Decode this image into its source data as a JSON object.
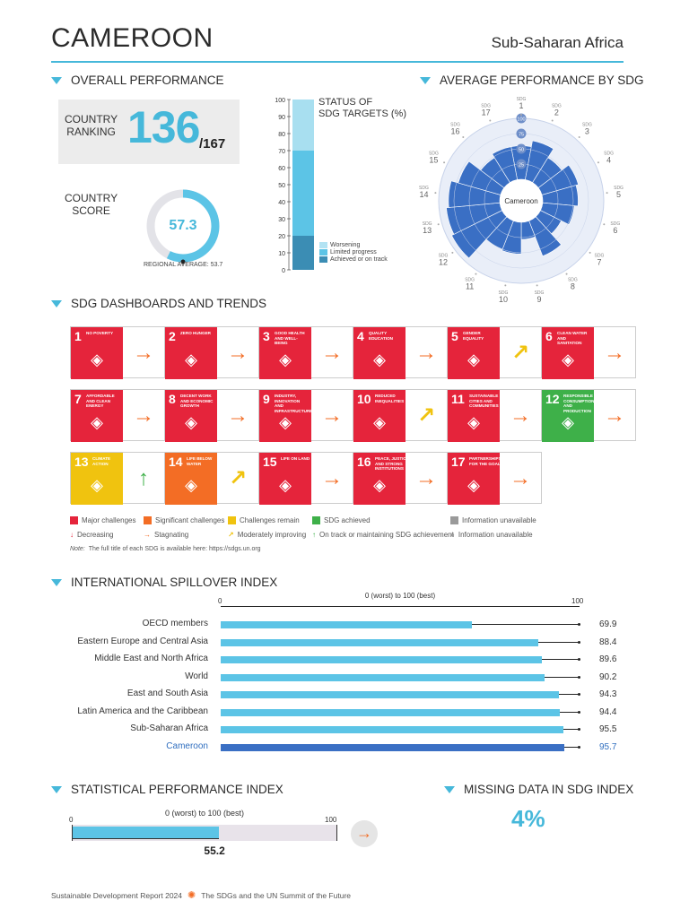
{
  "header": {
    "country": "CAMEROON",
    "region": "Sub-Saharan Africa"
  },
  "sections": {
    "overall": "OVERALL PERFORMANCE",
    "avg_sdg": "AVERAGE PERFORMANCE BY SDG",
    "dashboards": "SDG DASHBOARDS AND TRENDS",
    "spillover": "INTERNATIONAL SPILLOVER INDEX",
    "stat_perf": "STATISTICAL PERFORMANCE INDEX",
    "missing": "MISSING DATA IN SDG INDEX"
  },
  "ranking": {
    "label_line1": "COUNTRY",
    "label_line2": "RANKING",
    "value": "136",
    "of": "/167"
  },
  "score": {
    "label_line1": "COUNTRY",
    "label_line2": "SCORE",
    "value": "57.3",
    "fraction": 0.573,
    "regional_average": "REGIONAL AVERAGE: 53.7"
  },
  "status_chart": {
    "title_line1": "STATUS OF",
    "title_line2": "SDG TARGETS (%)",
    "ticks": [
      "100",
      "90",
      "80",
      "70",
      "60",
      "50",
      "40",
      "30",
      "20",
      "10",
      "0"
    ],
    "segments": [
      {
        "name": "Worsening",
        "value": 0,
        "color": "#b3e3f3"
      },
      {
        "name": "Limited progress",
        "value": 30,
        "color": "#a8dff0"
      },
      {
        "name": "Limited progress",
        "value": 50,
        "color": "#5cc4e6"
      },
      {
        "name": "Achieved or on track",
        "value": 20,
        "color": "#3b8db4"
      }
    ],
    "legend": [
      "Worsening",
      "Limited progress",
      "Achieved or on track"
    ]
  },
  "radial": {
    "center_label": "Cameroon",
    "ring_labels": [
      "100",
      "75",
      "50",
      "25"
    ],
    "sdg_label": "SDG",
    "sdgs": [
      "1",
      "2",
      "3",
      "4",
      "5",
      "6",
      "7",
      "8",
      "9",
      "10",
      "11",
      "12",
      "13",
      "14",
      "15",
      "16",
      "17"
    ],
    "values": [
      55,
      65,
      48,
      62,
      58,
      52,
      38,
      62,
      28,
      52,
      50,
      92,
      88,
      84,
      72,
      48,
      55
    ]
  },
  "sdg_tiles": [
    {
      "num": "1",
      "name": "No poverty",
      "color": "#e5243b",
      "trend": "→",
      "trend_color": "#f36d25"
    },
    {
      "num": "2",
      "name": "Zero hunger",
      "color": "#e5243b",
      "trend": "→",
      "trend_color": "#f36d25"
    },
    {
      "num": "3",
      "name": "Good health and well-being",
      "color": "#e5243b",
      "trend": "→",
      "trend_color": "#f36d25"
    },
    {
      "num": "4",
      "name": "Quality education",
      "color": "#e5243b",
      "trend": "→",
      "trend_color": "#f36d25"
    },
    {
      "num": "5",
      "name": "Gender equality",
      "color": "#e5243b",
      "trend": "↗",
      "trend_color": "#f0c30f"
    },
    {
      "num": "6",
      "name": "Clean water and sanitation",
      "color": "#e5243b",
      "trend": "→",
      "trend_color": "#f36d25"
    },
    {
      "num": "7",
      "name": "Affordable and clean energy",
      "color": "#e5243b",
      "trend": "→",
      "trend_color": "#f36d25"
    },
    {
      "num": "8",
      "name": "Decent work and economic growth",
      "color": "#e5243b",
      "trend": "→",
      "trend_color": "#f36d25"
    },
    {
      "num": "9",
      "name": "Industry, innovation and infrastructure",
      "color": "#e5243b",
      "trend": "→",
      "trend_color": "#f36d25"
    },
    {
      "num": "10",
      "name": "Reduced inequalities",
      "color": "#e5243b",
      "trend": "↗",
      "trend_color": "#f0c30f"
    },
    {
      "num": "11",
      "name": "Sustainable cities and communities",
      "color": "#e5243b",
      "trend": "→",
      "trend_color": "#f36d25"
    },
    {
      "num": "12",
      "name": "Responsible consumption and production",
      "color": "#3eb049",
      "trend": "→",
      "trend_color": "#f36d25"
    },
    {
      "num": "13",
      "name": "Climate action",
      "color": "#f0c30f",
      "trend": "↑",
      "trend_color": "#3eb049"
    },
    {
      "num": "14",
      "name": "Life below water",
      "color": "#f36d25",
      "trend": "↗",
      "trend_color": "#f0c30f"
    },
    {
      "num": "15",
      "name": "Life on land",
      "color": "#e5243b",
      "trend": "→",
      "trend_color": "#f36d25"
    },
    {
      "num": "16",
      "name": "Peace, justice and strong institutions",
      "color": "#e5243b",
      "trend": "→",
      "trend_color": "#f36d25"
    },
    {
      "num": "17",
      "name": "Partnerships for the goals",
      "color": "#e5243b",
      "trend": "→",
      "trend_color": "#f36d25"
    }
  ],
  "legend": {
    "major": "Major challenges",
    "significant": "Significant challenges",
    "remain": "Challenges remain",
    "achieved": "SDG achieved",
    "unavailable1": "Information unavailable",
    "decreasing": "Decreasing",
    "stagnating": "Stagnating",
    "moderate": "Moderately improving",
    "on_track": "On track or maintaining SDG achievement",
    "unavailable2": "Information unavailable",
    "note_label": "Note:",
    "note": "The full title of each SDG is available here: https://sdgs.un.org"
  },
  "chart_data": [
    {
      "type": "bar",
      "title": "INTERNATIONAL SPILLOVER INDEX",
      "axis_label": "0 (worst) to 100 (best)",
      "ylim": [
        0,
        100
      ],
      "tick_min": "0",
      "tick_max": "100",
      "categories": [
        "OECD members",
        "Eastern Europe and Central Asia",
        "Middle East and North Africa",
        "World",
        "East and South Asia",
        "Latin America and the Caribbean",
        "Sub-Saharan Africa",
        "Cameroon"
      ],
      "values": [
        69.9,
        88.4,
        89.6,
        90.2,
        94.3,
        94.4,
        95.5,
        95.7
      ],
      "labels": [
        "69.9",
        "88.4",
        "89.6",
        "90.2",
        "94.3",
        "94.4",
        "95.5",
        "95.7"
      ]
    },
    {
      "type": "bar",
      "title": "STATISTICAL PERFORMANCE INDEX",
      "axis_label": "0 (worst) to 100 (best)",
      "tick_min": "0",
      "tick_max": "100",
      "value": 55.2,
      "label": "55.2",
      "trend": "→"
    }
  ],
  "missing": {
    "value": "4%"
  },
  "footer": {
    "left": "Sustainable Development Report 2024",
    "right": "The SDGs and the UN Summit of the Future"
  }
}
